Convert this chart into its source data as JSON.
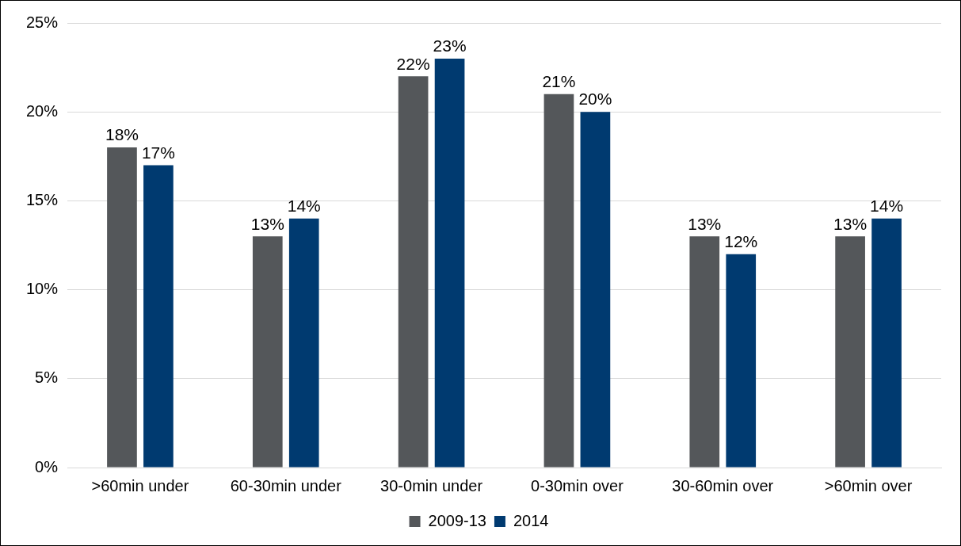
{
  "chart_data": {
    "type": "bar",
    "categories": [
      ">60min under",
      "60-30min under",
      "30-0min under",
      "0-30min over",
      "30-60min over",
      ">60min over"
    ],
    "series": [
      {
        "name": "2009-13",
        "color": "#54575a",
        "values": [
          18,
          13,
          22,
          21,
          13,
          13
        ],
        "value_labels": [
          "18%",
          "13%",
          "22%",
          "21%",
          "13%",
          "13%"
        ]
      },
      {
        "name": "2014",
        "color": "#003a70",
        "values": [
          17,
          14,
          23,
          20,
          12,
          14
        ],
        "value_labels": [
          "17%",
          "14%",
          "23%",
          "20%",
          "12%",
          "14%"
        ]
      }
    ],
    "ylim": [
      0,
      25
    ],
    "yticks": [
      {
        "value": 0,
        "label": "0%"
      },
      {
        "value": 5,
        "label": "5%"
      },
      {
        "value": 10,
        "label": "10%"
      },
      {
        "value": 15,
        "label": "15%"
      },
      {
        "value": 20,
        "label": "20%"
      },
      {
        "value": 25,
        "label": "25%"
      }
    ],
    "grid": "y",
    "legend": "bottom"
  }
}
